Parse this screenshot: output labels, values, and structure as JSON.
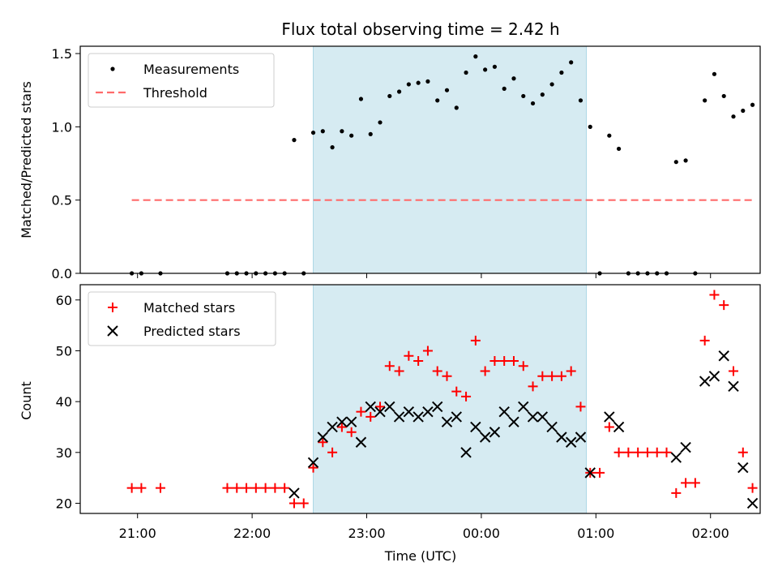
{
  "chart_data": {
    "type": "scatter",
    "title": "Flux total observing time = 2.42 h",
    "xlabel": "Time (UTC)",
    "x_ticks": [
      "21:00",
      "22:00",
      "23:00",
      "00:00",
      "01:00",
      "02:00"
    ],
    "shaded_interval": {
      "start": "22:32",
      "end": "00:55",
      "color": "#add8e6"
    },
    "colors": {
      "measurements": "#000000",
      "threshold": "#ff6b6b",
      "matched": "#ff0000",
      "predicted": "#000000",
      "shade": "#add8e6"
    },
    "panels": [
      {
        "ylabel": "Matched/Predicted stars",
        "ylim": [
          0,
          1.55
        ],
        "y_ticks": [
          "0.0",
          "0.5",
          "1.0",
          "1.5"
        ],
        "legend_position": "upper-left",
        "series": [
          {
            "name": "Measurements",
            "marker": "dot",
            "points": [
              [
                "20:57",
                0
              ],
              [
                "21:02",
                0
              ],
              [
                "21:12",
                0
              ],
              [
                "21:47",
                0
              ],
              [
                "21:52",
                0
              ],
              [
                "21:57",
                0
              ],
              [
                "22:02",
                0
              ],
              [
                "22:07",
                0
              ],
              [
                "22:12",
                0
              ],
              [
                "22:17",
                0
              ],
              [
                "22:22",
                0.91
              ],
              [
                "22:27",
                0
              ],
              [
                "22:32",
                0.96
              ],
              [
                "22:37",
                0.97
              ],
              [
                "22:42",
                0.86
              ],
              [
                "22:47",
                0.97
              ],
              [
                "22:52",
                0.94
              ],
              [
                "22:57",
                1.19
              ],
              [
                "23:02",
                0.95
              ],
              [
                "23:07",
                1.03
              ],
              [
                "23:12",
                1.21
              ],
              [
                "23:17",
                1.24
              ],
              [
                "23:22",
                1.29
              ],
              [
                "23:27",
                1.3
              ],
              [
                "23:32",
                1.31
              ],
              [
                "23:37",
                1.18
              ],
              [
                "23:42",
                1.25
              ],
              [
                "23:47",
                1.13
              ],
              [
                "23:52",
                1.37
              ],
              [
                "23:57",
                1.48
              ],
              [
                "00:02",
                1.39
              ],
              [
                "00:07",
                1.41
              ],
              [
                "00:12",
                1.26
              ],
              [
                "00:17",
                1.33
              ],
              [
                "00:22",
                1.21
              ],
              [
                "00:27",
                1.16
              ],
              [
                "00:32",
                1.22
              ],
              [
                "00:37",
                1.29
              ],
              [
                "00:42",
                1.37
              ],
              [
                "00:47",
                1.44
              ],
              [
                "00:52",
                1.18
              ],
              [
                "00:57",
                1.0
              ],
              [
                "01:02",
                0
              ],
              [
                "01:07",
                0.94
              ],
              [
                "01:12",
                0.85
              ],
              [
                "01:17",
                0
              ],
              [
                "01:22",
                0
              ],
              [
                "01:27",
                0
              ],
              [
                "01:32",
                0
              ],
              [
                "01:37",
                0
              ],
              [
                "01:42",
                0.76
              ],
              [
                "01:47",
                0.77
              ],
              [
                "01:52",
                0
              ],
              [
                "01:57",
                1.18
              ],
              [
                "02:02",
                1.36
              ],
              [
                "02:07",
                1.21
              ],
              [
                "02:12",
                1.07
              ],
              [
                "02:17",
                1.11
              ],
              [
                "02:22",
                1.15
              ]
            ]
          },
          {
            "name": "Threshold",
            "style": "dashed",
            "value": 0.5,
            "x_range": [
              "20:57",
              "02:22"
            ]
          }
        ]
      },
      {
        "ylabel": "Count",
        "ylim": [
          18,
          63
        ],
        "y_ticks": [
          "20",
          "30",
          "40",
          "50",
          "60"
        ],
        "legend_position": "upper-left",
        "series": [
          {
            "name": "Matched stars",
            "marker": "plus",
            "points": [
              [
                "20:57",
                23
              ],
              [
                "21:02",
                23
              ],
              [
                "21:12",
                23
              ],
              [
                "21:47",
                23
              ],
              [
                "21:52",
                23
              ],
              [
                "21:57",
                23
              ],
              [
                "22:02",
                23
              ],
              [
                "22:07",
                23
              ],
              [
                "22:12",
                23
              ],
              [
                "22:17",
                23
              ],
              [
                "22:22",
                20
              ],
              [
                "22:27",
                20
              ],
              [
                "22:32",
                27
              ],
              [
                "22:37",
                32
              ],
              [
                "22:42",
                30
              ],
              [
                "22:47",
                35
              ],
              [
                "22:52",
                34
              ],
              [
                "22:57",
                38
              ],
              [
                "23:02",
                37
              ],
              [
                "23:07",
                39
              ],
              [
                "23:12",
                47
              ],
              [
                "23:17",
                46
              ],
              [
                "23:22",
                49
              ],
              [
                "23:27",
                48
              ],
              [
                "23:32",
                50
              ],
              [
                "23:37",
                46
              ],
              [
                "23:42",
                45
              ],
              [
                "23:47",
                42
              ],
              [
                "23:52",
                41
              ],
              [
                "23:57",
                52
              ],
              [
                "00:02",
                46
              ],
              [
                "00:07",
                48
              ],
              [
                "00:12",
                48
              ],
              [
                "00:17",
                48
              ],
              [
                "00:22",
                47
              ],
              [
                "00:27",
                43
              ],
              [
                "00:32",
                45
              ],
              [
                "00:37",
                45
              ],
              [
                "00:42",
                45
              ],
              [
                "00:47",
                46
              ],
              [
                "00:52",
                39
              ],
              [
                "00:57",
                26
              ],
              [
                "01:02",
                26
              ],
              [
                "01:07",
                35
              ],
              [
                "01:12",
                30
              ],
              [
                "01:17",
                30
              ],
              [
                "01:22",
                30
              ],
              [
                "01:27",
                30
              ],
              [
                "01:32",
                30
              ],
              [
                "01:37",
                30
              ],
              [
                "01:42",
                22
              ],
              [
                "01:47",
                24
              ],
              [
                "01:52",
                24
              ],
              [
                "01:57",
                52
              ],
              [
                "02:02",
                61
              ],
              [
                "02:07",
                59
              ],
              [
                "02:12",
                46
              ],
              [
                "02:17",
                30
              ],
              [
                "02:22",
                23
              ]
            ]
          },
          {
            "name": "Predicted stars",
            "marker": "x",
            "points": [
              [
                "22:22",
                22
              ],
              [
                "22:32",
                28
              ],
              [
                "22:37",
                33
              ],
              [
                "22:42",
                35
              ],
              [
                "22:47",
                36
              ],
              [
                "22:52",
                36
              ],
              [
                "22:57",
                32
              ],
              [
                "23:02",
                39
              ],
              [
                "23:07",
                38
              ],
              [
                "23:12",
                39
              ],
              [
                "23:17",
                37
              ],
              [
                "23:22",
                38
              ],
              [
                "23:27",
                37
              ],
              [
                "23:32",
                38
              ],
              [
                "23:37",
                39
              ],
              [
                "23:42",
                36
              ],
              [
                "23:47",
                37
              ],
              [
                "23:52",
                30
              ],
              [
                "23:57",
                35
              ],
              [
                "00:02",
                33
              ],
              [
                "00:07",
                34
              ],
              [
                "00:12",
                38
              ],
              [
                "00:17",
                36
              ],
              [
                "00:22",
                39
              ],
              [
                "00:27",
                37
              ],
              [
                "00:32",
                37
              ],
              [
                "00:37",
                35
              ],
              [
                "00:42",
                33
              ],
              [
                "00:47",
                32
              ],
              [
                "00:52",
                33
              ],
              [
                "00:57",
                26
              ],
              [
                "01:07",
                37
              ],
              [
                "01:12",
                35
              ],
              [
                "01:42",
                29
              ],
              [
                "01:47",
                31
              ],
              [
                "01:57",
                44
              ],
              [
                "02:02",
                45
              ],
              [
                "02:07",
                49
              ],
              [
                "02:12",
                43
              ],
              [
                "02:17",
                27
              ],
              [
                "02:22",
                20
              ]
            ]
          }
        ]
      }
    ]
  }
}
